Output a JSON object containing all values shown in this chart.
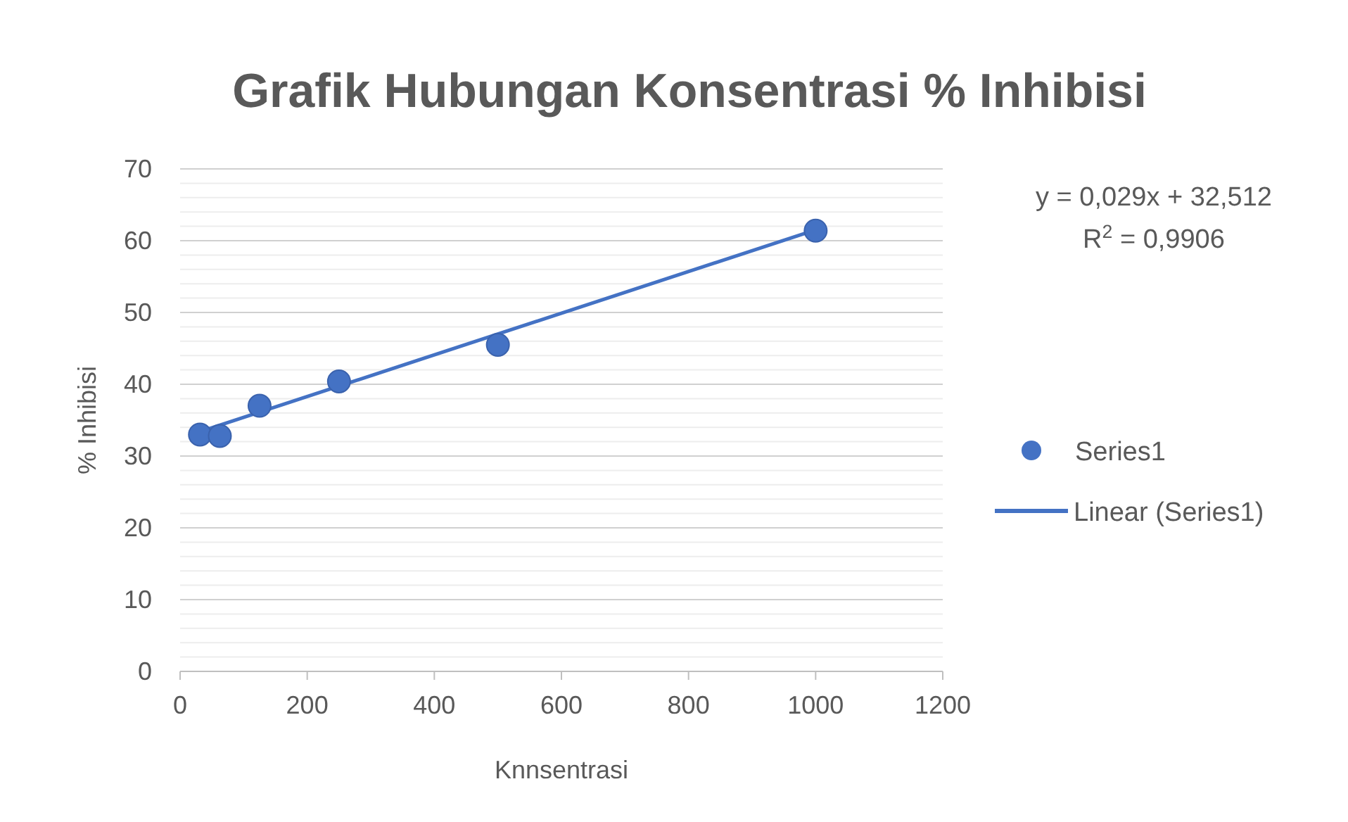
{
  "chart_data": {
    "type": "scatter",
    "title": "Grafik Hubungan Konsentrasi  % Inhibisi",
    "xlabel": "Knnsentrasi",
    "ylabel": "% Inhibisi",
    "series": [
      {
        "name": "Series1",
        "color": "#4472c4",
        "x": [
          31.25,
          62.5,
          125,
          250,
          500,
          1000
        ],
        "values": [
          33.0,
          32.8,
          37.0,
          40.4,
          45.5,
          61.4
        ],
        "marker": "circle"
      },
      {
        "name": "Linear (Series1)",
        "type": "line",
        "color": "#4472c4",
        "x": [
          31.25,
          1000
        ],
        "values": [
          33.4,
          61.5
        ],
        "line_style": "solid"
      }
    ],
    "xlim": [
      0,
      1200
    ],
    "xticks": [
      0,
      200,
      400,
      600,
      800,
      1000,
      1200
    ],
    "ylim": [
      0,
      70
    ],
    "yticks": [
      0,
      10,
      20,
      30,
      40,
      50,
      60,
      70
    ],
    "grid": "y",
    "legend": "right",
    "annotations": [
      "y = 0,029x + 32,512",
      "R$^{2}$ = 0,9906"
    ]
  }
}
